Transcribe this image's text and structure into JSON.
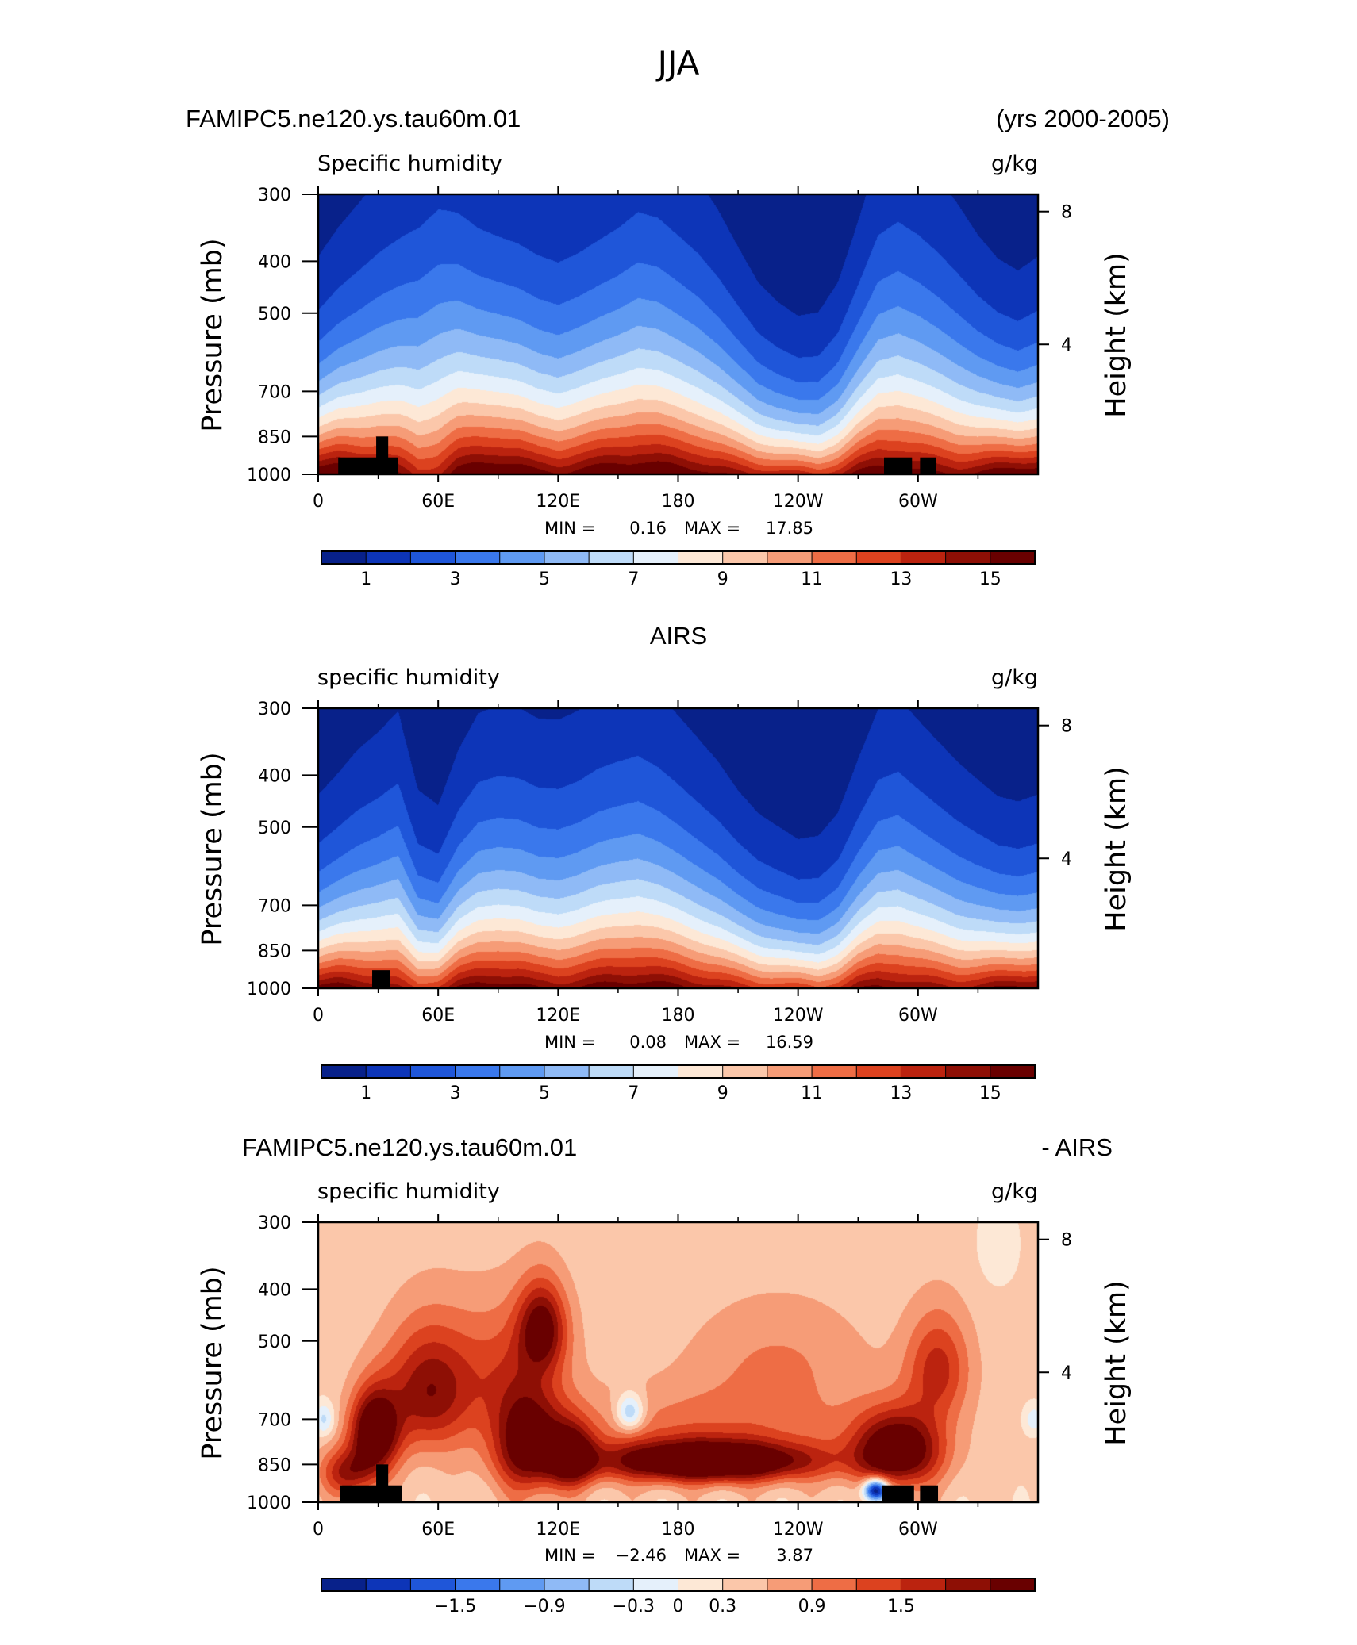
{
  "figure": {
    "title": "JJA",
    "colors": {
      "absolute": [
        "#08218a",
        "#0d35b8",
        "#1f56d9",
        "#3a78ec",
        "#5f9af2",
        "#8fbaf6",
        "#bedbf8",
        "#e5f0fb",
        "#fde8d6",
        "#fbc7aa",
        "#f69c77",
        "#ee6d45",
        "#dc421f",
        "#bb230f",
        "#8e0f05",
        "#690000"
      ],
      "difference": [
        "#08218a",
        "#0d35b8",
        "#1f56d9",
        "#3a78ec",
        "#5f9af2",
        "#8fbaf6",
        "#bedbf8",
        "#e5f0fb",
        "#fde8d6",
        "#fbc7aa",
        "#f69c77",
        "#ee6d45",
        "#dc421f",
        "#bb230f",
        "#8e0f05",
        "#690000"
      ],
      "topography": "#000000"
    }
  },
  "chart_data": [
    {
      "type": "heatmap",
      "header_left": "FAMIPC5.ne120.ys.tau60m.01",
      "header_right": "(yrs 2000-2005)",
      "title": "",
      "subtitle_left": "Specific humidity",
      "subtitle_right": "g/kg",
      "ylabel": "Pressure (mb)",
      "ylabel_right": "Height (km)",
      "ylim": [
        1000,
        300
      ],
      "y_ticks": [
        "300",
        "400",
        "500",
        "700",
        "850",
        "1000"
      ],
      "y_tick_values": [
        300,
        400,
        500,
        700,
        850,
        1000
      ],
      "height_ticks": [
        "8",
        "4"
      ],
      "height_tick_values": [
        8,
        4
      ],
      "xlim": [
        0,
        360
      ],
      "x_ticks": [
        "0",
        "60E",
        "120E",
        "180",
        "120W",
        "60W"
      ],
      "x_tick_values": [
        0,
        60,
        120,
        180,
        240,
        300
      ],
      "min_label": "MIN =",
      "min_value": "0.16",
      "max_label": "MAX =",
      "max_value": "17.85",
      "colorbar_labels": [
        "1",
        "3",
        "5",
        "7",
        "9",
        "11",
        "13",
        "15"
      ],
      "colorbar_levels": [
        0,
        1,
        2,
        3,
        4,
        5,
        6,
        7,
        8,
        9,
        10,
        11,
        12,
        13,
        14,
        15,
        16
      ],
      "colorbar_label_values": [
        1,
        3,
        5,
        7,
        9,
        11,
        13,
        15
      ],
      "surface_q": [
        16.5,
        16.8,
        16.2,
        15.8,
        15.0,
        13.5,
        14.0,
        15.8,
        16.5,
        16.8,
        16.5,
        15.5,
        15.2,
        15.8,
        16.2,
        16.5,
        16.6,
        16.5,
        16.2,
        15.8,
        15.2,
        14.5,
        14.0,
        13.8,
        13.5,
        13.0,
        14.0,
        15.5,
        16.2,
        16.0,
        15.6,
        15.2,
        15.0,
        15.4,
        16.0,
        16.4,
        16.5
      ],
      "scale_height_km": [
        3.2,
        3.6,
        4.0,
        4.4,
        4.8,
        5.3,
        5.6,
        5.2,
        4.8,
        4.6,
        4.5,
        4.4,
        4.3,
        4.4,
        4.6,
        4.8,
        5.1,
        5.0,
        4.7,
        4.4,
        4.0,
        3.5,
        3.0,
        2.7,
        2.5,
        2.6,
        3.0,
        3.8,
        4.7,
        5.0,
        4.8,
        4.5,
        4.1,
        3.6,
        3.2,
        3.0,
        3.2
      ],
      "topography": [
        {
          "lon_start": 10,
          "lon_end": 40,
          "p_top": 930
        },
        {
          "lon_start": 29,
          "lon_end": 35,
          "p_top": 850
        },
        {
          "lon_start": 283,
          "lon_end": 297,
          "p_top": 930
        },
        {
          "lon_start": 301,
          "lon_end": 309,
          "p_top": 930
        }
      ]
    },
    {
      "type": "heatmap",
      "title": "AIRS",
      "subtitle_left": "specific humidity",
      "subtitle_right": "g/kg",
      "ylabel": "Pressure (mb)",
      "ylabel_right": "Height (km)",
      "ylim": [
        1000,
        300
      ],
      "y_ticks": [
        "300",
        "400",
        "500",
        "700",
        "850",
        "1000"
      ],
      "y_tick_values": [
        300,
        400,
        500,
        700,
        850,
        1000
      ],
      "height_ticks": [
        "8",
        "4"
      ],
      "height_tick_values": [
        8,
        4
      ],
      "xlim": [
        0,
        360
      ],
      "x_ticks": [
        "0",
        "60E",
        "120E",
        "180",
        "120W",
        "60W"
      ],
      "x_tick_values": [
        0,
        60,
        120,
        180,
        240,
        300
      ],
      "min_label": "MIN =",
      "min_value": "0.08",
      "max_label": "MAX =",
      "max_value": "16.59",
      "colorbar_labels": [
        "1",
        "3",
        "5",
        "7",
        "9",
        "11",
        "13",
        "15"
      ],
      "colorbar_levels": [
        0,
        1,
        2,
        3,
        4,
        5,
        6,
        7,
        8,
        9,
        10,
        11,
        12,
        13,
        14,
        15,
        16
      ],
      "colorbar_label_values": [
        1,
        3,
        5,
        7,
        9,
        11,
        13,
        15
      ],
      "surface_q": [
        15.6,
        15.9,
        15.4,
        14.9,
        14.2,
        12.8,
        13.5,
        15.2,
        15.8,
        16.0,
        15.7,
        15.0,
        14.8,
        15.2,
        15.6,
        15.9,
        16.0,
        15.8,
        15.5,
        15.0,
        14.4,
        13.8,
        13.2,
        13.0,
        12.8,
        12.3,
        13.3,
        14.8,
        15.4,
        15.2,
        14.8,
        14.5,
        14.3,
        14.6,
        15.2,
        15.6,
        15.7
      ],
      "scale_height_km": [
        2.9,
        3.2,
        3.6,
        3.9,
        4.3,
        3.2,
        2.9,
        3.6,
        4.1,
        4.2,
        4.2,
        4.1,
        4.1,
        4.2,
        4.4,
        4.5,
        4.6,
        4.4,
        4.1,
        3.8,
        3.5,
        3.1,
        2.8,
        2.6,
        2.4,
        2.5,
        2.8,
        3.5,
        4.2,
        4.4,
        4.1,
        3.8,
        3.5,
        3.2,
        2.9,
        2.8,
        2.9
      ],
      "topography": [
        {
          "lon_start": 27,
          "lon_end": 36,
          "p_top": 925
        }
      ]
    },
    {
      "type": "heatmap",
      "header_left": "FAMIPC5.ne120.ys.tau60m.01",
      "header_right": "- AIRS",
      "title": "",
      "subtitle_left": "specific humidity",
      "subtitle_right": "g/kg",
      "ylabel": "Pressure (mb)",
      "ylabel_right": "Height (km)",
      "ylim": [
        1000,
        300
      ],
      "y_ticks": [
        "300",
        "400",
        "500",
        "700",
        "850",
        "1000"
      ],
      "y_tick_values": [
        300,
        400,
        500,
        700,
        850,
        1000
      ],
      "height_ticks": [
        "8",
        "4"
      ],
      "height_tick_values": [
        8,
        4
      ],
      "xlim": [
        0,
        360
      ],
      "x_ticks": [
        "0",
        "60E",
        "120E",
        "180",
        "120W",
        "60W"
      ],
      "x_tick_values": [
        0,
        60,
        120,
        180,
        240,
        300
      ],
      "min_label": "MIN =",
      "min_value": "−2.46",
      "max_label": "MAX =",
      "max_value": "3.87",
      "colorbar_labels": [
        "−1.5",
        "−0.9",
        "−0.3",
        "0",
        "0.3",
        "0.9",
        "1.5"
      ],
      "colorbar_levels": [
        -2.4,
        -2.1,
        -1.8,
        -1.5,
        -1.2,
        -0.9,
        -0.6,
        -0.3,
        0,
        0.3,
        0.6,
        0.9,
        1.2,
        1.5,
        1.8,
        2.1,
        2.4
      ],
      "colorbar_label_values": [
        -1.5,
        -0.9,
        -0.3,
        0,
        0.3,
        0.9,
        1.5
      ],
      "diff_base": 0.4,
      "diff_features": [
        {
          "lon": 28,
          "p": 740,
          "amp": 2.4,
          "w": 12,
          "h": 130
        },
        {
          "lon": 15,
          "p": 880,
          "amp": 1.4,
          "w": 14,
          "h": 90
        },
        {
          "lon": 55,
          "p": 620,
          "amp": 1.6,
          "w": 22,
          "h": 170
        },
        {
          "lon": 105,
          "p": 780,
          "amp": 2.0,
          "w": 18,
          "h": 170
        },
        {
          "lon": 112,
          "p": 470,
          "amp": 1.7,
          "w": 12,
          "h": 90
        },
        {
          "lon": 127,
          "p": 820,
          "amp": 1.8,
          "w": 12,
          "h": 110
        },
        {
          "lon": 195,
          "p": 840,
          "amp": 2.8,
          "w": 55,
          "h": 75
        },
        {
          "lon": 195,
          "p": 720,
          "amp": 0.6,
          "w": 80,
          "h": 120
        },
        {
          "lon": 290,
          "p": 800,
          "amp": 2.3,
          "w": 22,
          "h": 130
        },
        {
          "lon": 310,
          "p": 560,
          "amp": 1.2,
          "w": 16,
          "h": 130
        },
        {
          "lon": 95,
          "p": 560,
          "amp": 0.8,
          "w": 28,
          "h": 160
        },
        {
          "lon": 230,
          "p": 540,
          "amp": 0.5,
          "w": 45,
          "h": 140
        },
        {
          "lon": 156,
          "p": 680,
          "amp": -1.3,
          "w": 7,
          "h": 55
        },
        {
          "lon": 3,
          "p": 700,
          "amp": -0.8,
          "w": 5,
          "h": 50
        },
        {
          "lon": 279,
          "p": 950,
          "amp": -3.2,
          "w": 6,
          "h": 45
        },
        {
          "lon": 358,
          "p": 700,
          "amp": -0.6,
          "w": 5,
          "h": 45
        },
        {
          "lon": 340,
          "p": 330,
          "amp": -0.35,
          "w": 10,
          "h": 60
        }
      ],
      "topography": [
        {
          "lon_start": 11,
          "lon_end": 42,
          "p_top": 930
        },
        {
          "lon_start": 29,
          "lon_end": 35,
          "p_top": 850
        },
        {
          "lon_start": 282,
          "lon_end": 298,
          "p_top": 930
        },
        {
          "lon_start": 301,
          "lon_end": 310,
          "p_top": 930
        }
      ]
    }
  ]
}
